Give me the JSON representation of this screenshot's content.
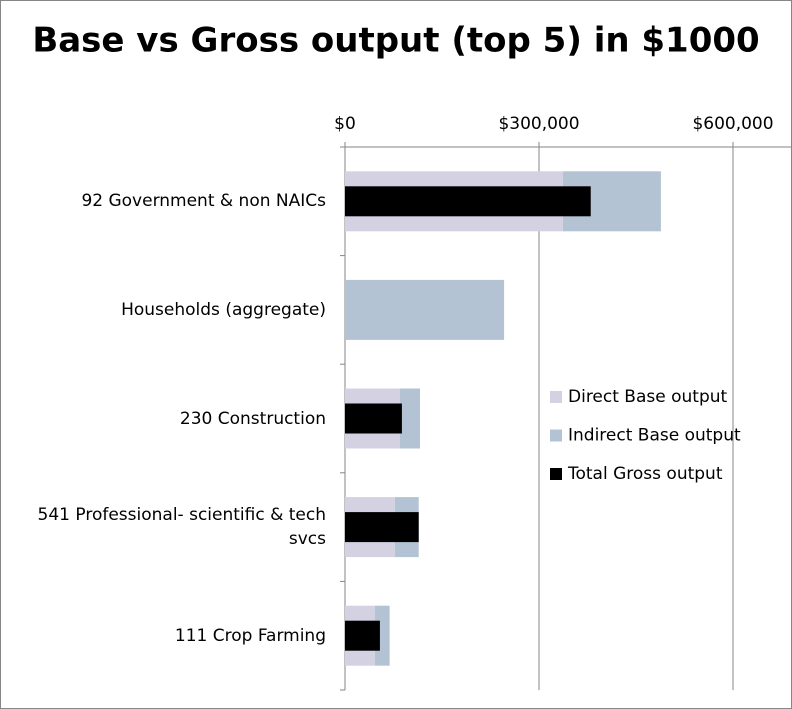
{
  "chart_data": {
    "type": "bar",
    "orientation": "horizontal",
    "title": "Base vs Gross output (top 5) in $1000",
    "categories": [
      "92 Government & non NAICs",
      "Households (aggregate)",
      "230 Construction",
      "541 Professional- scientific & tech svcs",
      "111 Crop Farming"
    ],
    "series": [
      {
        "name": "Direct Base output",
        "color": "#d4d2e2",
        "values": [
          337000,
          0,
          85000,
          77000,
          46000
        ]
      },
      {
        "name": "Indirect Base output",
        "color": "#b3c3d4",
        "values": [
          151500,
          246000,
          31000,
          37000,
          23000
        ]
      },
      {
        "name": "Total Gross output",
        "color": "#000000",
        "values": [
          380000,
          0,
          88000,
          114000,
          54000
        ]
      }
    ],
    "xlim": [
      0,
      690000
    ],
    "xticks": [
      {
        "value": 0,
        "label": "$0"
      },
      {
        "value": 300000,
        "label": "$300,000"
      },
      {
        "value": 600000,
        "label": "$600,000"
      }
    ],
    "grid": true,
    "legend": "right"
  }
}
